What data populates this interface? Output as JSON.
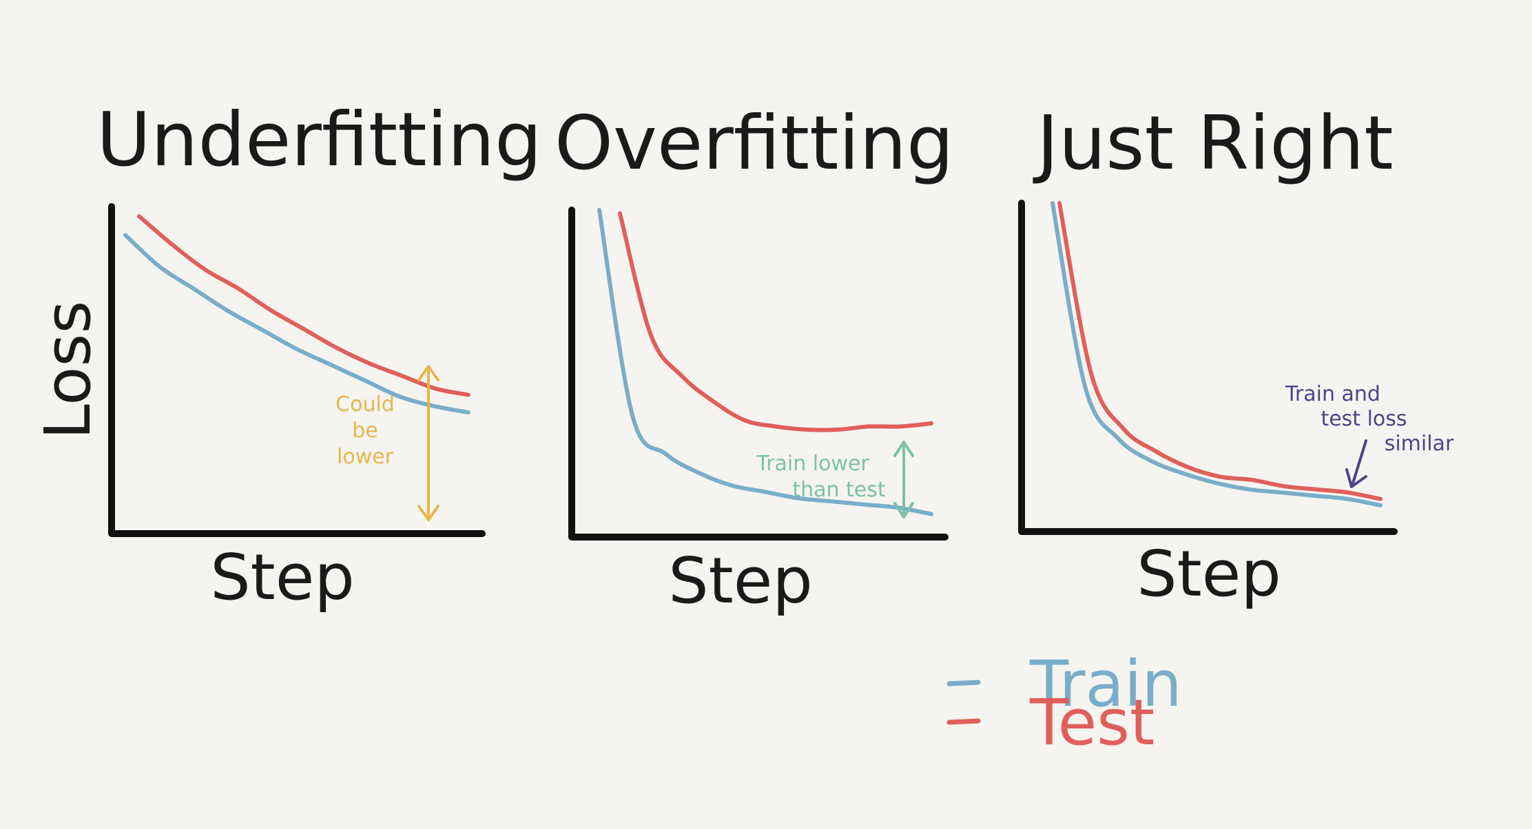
{
  "colors": {
    "train": "#79adc9",
    "test": "#e15f5a",
    "axis": "#111111",
    "annot_under": "#e7b64c",
    "annot_over": "#7dc1a6",
    "annot_right": "#4d4589",
    "text": "#1a1a1a"
  },
  "chart_data": [
    {
      "type": "line",
      "title": "Underfitting",
      "xlabel": "Step",
      "ylabel": "Loss",
      "x": [
        0,
        10,
        20,
        30,
        40,
        50,
        60,
        70,
        80,
        90,
        100
      ],
      "series": [
        {
          "name": "Train",
          "values": [
            91,
            81,
            74,
            67,
            61,
            55,
            50,
            45,
            40,
            37,
            35
          ]
        },
        {
          "name": "Test",
          "values": [
            98,
            89,
            81,
            75,
            68,
            62,
            56,
            51,
            47,
            43,
            41
          ]
        }
      ],
      "annotation": {
        "lines": [
          "Could",
          "be",
          "lower"
        ]
      }
    },
    {
      "type": "line",
      "title": "Overfitting",
      "xlabel": "Step",
      "ylabel": "",
      "x": [
        0,
        10,
        20,
        30,
        40,
        50,
        60,
        70,
        80,
        90,
        100
      ],
      "series": [
        {
          "name": "Train",
          "values": [
            100,
            35,
            23,
            17,
            13,
            11,
            9,
            8,
            7,
            6,
            4
          ]
        },
        {
          "name": "Test",
          "values": [
            100,
            61,
            48,
            40,
            34,
            32,
            31,
            31,
            32,
            32,
            33
          ]
        }
      ],
      "annotation": {
        "lines": [
          "Train lower",
          "than test"
        ]
      }
    },
    {
      "type": "line",
      "title": "Just Right",
      "xlabel": "Step",
      "ylabel": "",
      "x": [
        0,
        10,
        20,
        30,
        40,
        50,
        60,
        70,
        80,
        90,
        100
      ],
      "series": [
        {
          "name": "Train",
          "values": [
            100,
            42,
            26,
            19,
            15,
            12,
            10,
            9,
            8,
            7,
            5
          ]
        },
        {
          "name": "Test",
          "values": [
            100,
            46,
            29,
            22,
            17,
            14,
            13,
            11,
            10,
            9,
            7
          ]
        }
      ],
      "annotation": {
        "lines": [
          "Train and",
          "test loss",
          "similar"
        ]
      }
    }
  ],
  "legend": [
    {
      "key": "train",
      "label": "Train"
    },
    {
      "key": "test",
      "label": "Test"
    }
  ]
}
